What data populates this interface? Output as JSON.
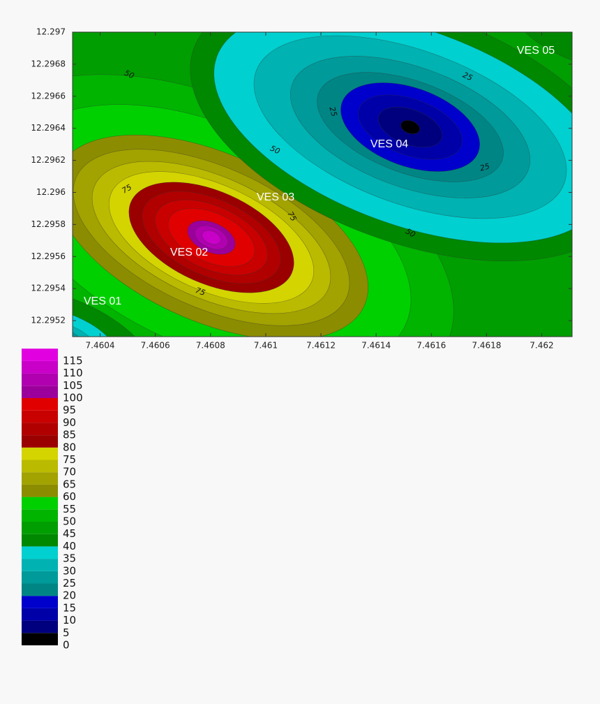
{
  "chart_data": {
    "type": "contour",
    "xlim": [
      7.4603,
      7.46211
    ],
    "ylim": [
      12.2951,
      12.297
    ],
    "xticks": [
      7.4604,
      7.4606,
      7.4608,
      7.461,
      7.4612,
      7.4614,
      7.4616,
      7.4618,
      7.462
    ],
    "yticks": [
      12.2952,
      12.2954,
      12.2956,
      12.2958,
      12.296,
      12.2962,
      12.2964,
      12.2966,
      12.2968,
      12.297
    ],
    "levels": [
      0,
      5,
      10,
      15,
      20,
      25,
      30,
      35,
      40,
      45,
      50,
      55,
      60,
      65,
      70,
      75,
      80,
      85,
      90,
      95,
      100,
      105,
      110,
      115
    ],
    "colors": [
      "#000000",
      "#00007e",
      "#0000a8",
      "#0000cc",
      "#008585",
      "#009a9a",
      "#00b2b2",
      "#00d0d0",
      "#008800",
      "#009e00",
      "#00b400",
      "#00d000",
      "#8c8c00",
      "#a2a200",
      "#baba00",
      "#d4d400",
      "#9a0000",
      "#b00000",
      "#c80000",
      "#e00000",
      "#9c009c",
      "#b000b0",
      "#c800c8",
      "#e000e0"
    ],
    "contour_labels": [
      50,
      50,
      75,
      75,
      75,
      25,
      25,
      25,
      50
    ],
    "annotations": [
      "VES 01",
      "VES 02",
      "VES 03",
      "VES 04",
      "VES 05"
    ]
  }
}
